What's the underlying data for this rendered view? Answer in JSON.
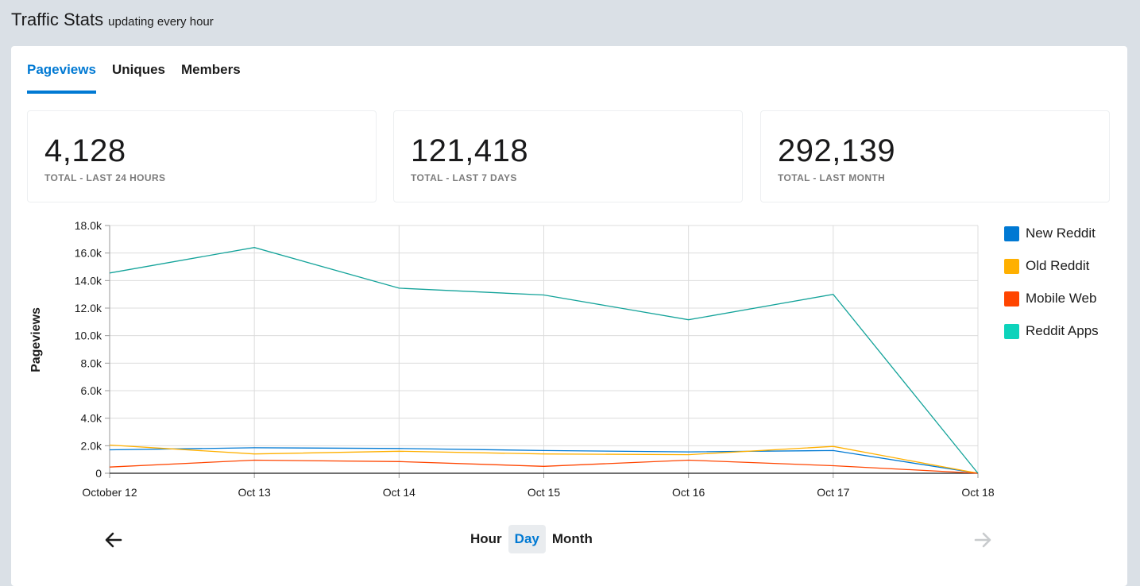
{
  "header": {
    "title": "Traffic Stats",
    "subtitle": "updating every hour"
  },
  "tabs": [
    {
      "label": "Pageviews",
      "active": true
    },
    {
      "label": "Uniques",
      "active": false
    },
    {
      "label": "Members",
      "active": false
    }
  ],
  "stats": [
    {
      "value": "4,128",
      "label": "TOTAL - LAST 24 HOURS"
    },
    {
      "value": "121,418",
      "label": "TOTAL - LAST 7 DAYS"
    },
    {
      "value": "292,139",
      "label": "TOTAL - LAST MONTH"
    }
  ],
  "chart_data": {
    "type": "line",
    "ylabel": "Pageviews",
    "xlabel": "",
    "x": [
      "October 12",
      "Oct 13",
      "Oct 14",
      "Oct 15",
      "Oct 16",
      "Oct 17",
      "Oct 18"
    ],
    "ylim": [
      0,
      18000
    ],
    "yticks": [
      "0",
      "2.0k",
      "4.0k",
      "6.0k",
      "8.0k",
      "10.0k",
      "12.0k",
      "14.0k",
      "16.0k",
      "18.0k"
    ],
    "grid": true,
    "legend_position": "right",
    "series": [
      {
        "name": "New Reddit",
        "color": "#0079d3",
        "values": [
          1700,
          1850,
          1800,
          1650,
          1550,
          1650,
          0
        ]
      },
      {
        "name": "Old Reddit",
        "color": "#ffb000",
        "values": [
          2050,
          1400,
          1600,
          1400,
          1350,
          1950,
          0
        ]
      },
      {
        "name": "Mobile Web",
        "color": "#ff4500",
        "values": [
          450,
          950,
          850,
          500,
          950,
          550,
          0
        ]
      },
      {
        "name": "Reddit Apps",
        "color": "#0dd3bb",
        "values": [
          14550,
          16400,
          13450,
          12950,
          11150,
          13000,
          0
        ]
      }
    ]
  },
  "series_colors": {
    "reddit_apps_line": "#14a39a"
  },
  "period": {
    "options": [
      "Hour",
      "Day",
      "Month"
    ],
    "selected": "Day"
  },
  "nav": {
    "prev_icon": "arrow-left-icon",
    "next_icon": "arrow-right-icon",
    "next_disabled": true
  }
}
